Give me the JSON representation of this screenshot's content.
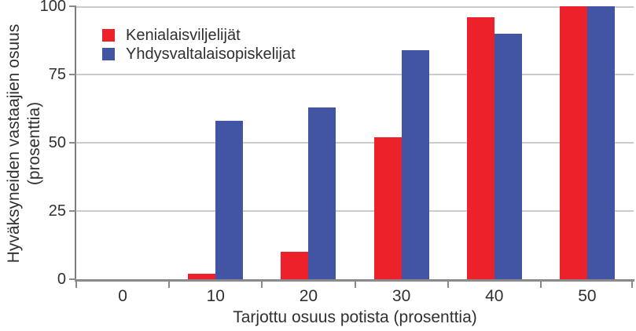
{
  "chart_data": {
    "type": "bar",
    "categories": [
      "0",
      "10",
      "20",
      "30",
      "40",
      "50"
    ],
    "series": [
      {
        "name": "Kenialaisviljelijät",
        "color": "#ec212a",
        "values": [
          0,
          2,
          10,
          52,
          96,
          100
        ]
      },
      {
        "name": "Yhdysvaltalaisopiskelijat",
        "color": "#4155a4",
        "values": [
          0,
          58,
          63,
          84,
          90,
          100
        ]
      }
    ],
    "title": "",
    "xlabel": "Tarjottu osuus potista (prosenttia)",
    "ylabel_line1": "Hyväksyneiden vastaajien osuus",
    "ylabel_line2": "(prosenttia)",
    "ylim": [
      0,
      100
    ],
    "yticks": [
      "0",
      "25",
      "50",
      "75",
      "100"
    ],
    "grid": true,
    "legend_position": "top-left"
  },
  "colors": {
    "grid": "#c9cccc",
    "axis": "#8a8a8a",
    "text": "#303030",
    "background": "#ffffff"
  }
}
